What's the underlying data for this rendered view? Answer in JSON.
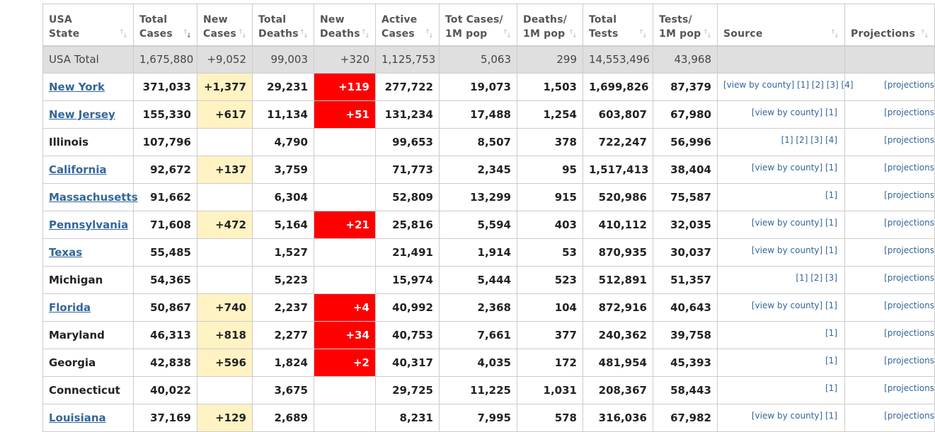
{
  "headers": [
    {
      "label": "USA\nState",
      "sort": "inactive"
    },
    {
      "label": "Total\nCases",
      "sort": "active"
    },
    {
      "label": "New\nCases",
      "sort": "inactive"
    },
    {
      "label": "Total\nDeaths",
      "sort": "inactive"
    },
    {
      "label": "New\nDeaths",
      "sort": "inactive"
    },
    {
      "label": "Active\nCases",
      "sort": "inactive"
    },
    {
      "label": "Tot Cases/\n1M pop",
      "sort": "inactive"
    },
    {
      "label": "Deaths/\n1M pop",
      "sort": "inactive"
    },
    {
      "label": "Total\nTests",
      "sort": "inactive"
    },
    {
      "label": "Tests/\n1M pop",
      "sort": "inactive"
    },
    {
      "label": "Source",
      "sort": "inactive"
    },
    {
      "label": "Projections",
      "sort": "inactive"
    }
  ],
  "total_row": {
    "state": "USA Total",
    "total_cases": "1,675,880",
    "new_cases": "+9,052",
    "total_deaths": "99,003",
    "new_deaths": "+320",
    "active_cases": "1,125,753",
    "cases_per_1m": "5,063",
    "deaths_per_1m": "299",
    "total_tests": "14,553,496",
    "tests_per_1m": "43,968"
  },
  "rows": [
    {
      "state": "New York",
      "linked": true,
      "total_cases": "371,033",
      "new_cases": "+1,377",
      "total_deaths": "29,231",
      "new_deaths": "+119",
      "active_cases": "277,722",
      "cases_per_1m": "19,073",
      "deaths_per_1m": "1,503",
      "total_tests": "1,699,826",
      "tests_per_1m": "87,379",
      "source": "[view by county] [1] [2] [3] [4]",
      "projection": "[projections"
    },
    {
      "state": "New Jersey",
      "linked": true,
      "total_cases": "155,330",
      "new_cases": "+617",
      "total_deaths": "11,134",
      "new_deaths": "+51",
      "active_cases": "131,234",
      "cases_per_1m": "17,488",
      "deaths_per_1m": "1,254",
      "total_tests": "603,807",
      "tests_per_1m": "67,980",
      "source": "[view by county] [1]",
      "projection": "[projections"
    },
    {
      "state": "Illinois",
      "linked": false,
      "total_cases": "107,796",
      "new_cases": "",
      "total_deaths": "4,790",
      "new_deaths": "",
      "active_cases": "99,653",
      "cases_per_1m": "8,507",
      "deaths_per_1m": "378",
      "total_tests": "722,247",
      "tests_per_1m": "56,996",
      "source": "[1] [2] [3] [4]",
      "projection": "[projections"
    },
    {
      "state": "California",
      "linked": true,
      "total_cases": "92,672",
      "new_cases": "+137",
      "total_deaths": "3,759",
      "new_deaths": "",
      "active_cases": "71,773",
      "cases_per_1m": "2,345",
      "deaths_per_1m": "95",
      "total_tests": "1,517,413",
      "tests_per_1m": "38,404",
      "source": "[view by county] [1]",
      "projection": "[projections"
    },
    {
      "state": "Massachusetts",
      "linked": true,
      "total_cases": "91,662",
      "new_cases": "",
      "total_deaths": "6,304",
      "new_deaths": "",
      "active_cases": "52,809",
      "cases_per_1m": "13,299",
      "deaths_per_1m": "915",
      "total_tests": "520,986",
      "tests_per_1m": "75,587",
      "source": "[1]",
      "projection": "[projections"
    },
    {
      "state": "Pennsylvania",
      "linked": true,
      "total_cases": "71,608",
      "new_cases": "+472",
      "total_deaths": "5,164",
      "new_deaths": "+21",
      "active_cases": "25,816",
      "cases_per_1m": "5,594",
      "deaths_per_1m": "403",
      "total_tests": "410,112",
      "tests_per_1m": "32,035",
      "source": "[view by county] [1]",
      "projection": "[projections"
    },
    {
      "state": "Texas",
      "linked": true,
      "total_cases": "55,485",
      "new_cases": "",
      "total_deaths": "1,527",
      "new_deaths": "",
      "active_cases": "21,491",
      "cases_per_1m": "1,914",
      "deaths_per_1m": "53",
      "total_tests": "870,935",
      "tests_per_1m": "30,037",
      "source": "[view by county] [1]",
      "projection": "[projections"
    },
    {
      "state": "Michigan",
      "linked": false,
      "total_cases": "54,365",
      "new_cases": "",
      "total_deaths": "5,223",
      "new_deaths": "",
      "active_cases": "15,974",
      "cases_per_1m": "5,444",
      "deaths_per_1m": "523",
      "total_tests": "512,891",
      "tests_per_1m": "51,357",
      "source": "[1] [2] [3]",
      "projection": "[projections"
    },
    {
      "state": "Florida",
      "linked": true,
      "total_cases": "50,867",
      "new_cases": "+740",
      "total_deaths": "2,237",
      "new_deaths": "+4",
      "active_cases": "40,992",
      "cases_per_1m": "2,368",
      "deaths_per_1m": "104",
      "total_tests": "872,916",
      "tests_per_1m": "40,643",
      "source": "[view by county] [1]",
      "projection": "[projections"
    },
    {
      "state": "Maryland",
      "linked": false,
      "total_cases": "46,313",
      "new_cases": "+818",
      "total_deaths": "2,277",
      "new_deaths": "+34",
      "active_cases": "40,753",
      "cases_per_1m": "7,661",
      "deaths_per_1m": "377",
      "total_tests": "240,362",
      "tests_per_1m": "39,758",
      "source": "[1]",
      "projection": "[projections"
    },
    {
      "state": "Georgia",
      "linked": false,
      "total_cases": "42,838",
      "new_cases": "+596",
      "total_deaths": "1,824",
      "new_deaths": "+2",
      "active_cases": "40,317",
      "cases_per_1m": "4,035",
      "deaths_per_1m": "172",
      "total_tests": "481,954",
      "tests_per_1m": "45,393",
      "source": "[1]",
      "projection": "[projections"
    },
    {
      "state": "Connecticut",
      "linked": false,
      "total_cases": "40,022",
      "new_cases": "",
      "total_deaths": "3,675",
      "new_deaths": "",
      "active_cases": "29,725",
      "cases_per_1m": "11,225",
      "deaths_per_1m": "1,031",
      "total_tests": "208,367",
      "tests_per_1m": "58,443",
      "source": "[1]",
      "projection": "[projections"
    },
    {
      "state": "Louisiana",
      "linked": true,
      "total_cases": "37,169",
      "new_cases": "+129",
      "total_deaths": "2,689",
      "new_deaths": "",
      "active_cases": "8,231",
      "cases_per_1m": "7,995",
      "deaths_per_1m": "578",
      "total_tests": "316,036",
      "tests_per_1m": "67,982",
      "source": "[view by county] [1]",
      "projection": "[projections"
    }
  ],
  "colors": {
    "new_cases_bg": "#fff3c4",
    "new_deaths_bg": "#ff0000",
    "total_row_bg": "#dfdfdf",
    "link": "#336699"
  }
}
